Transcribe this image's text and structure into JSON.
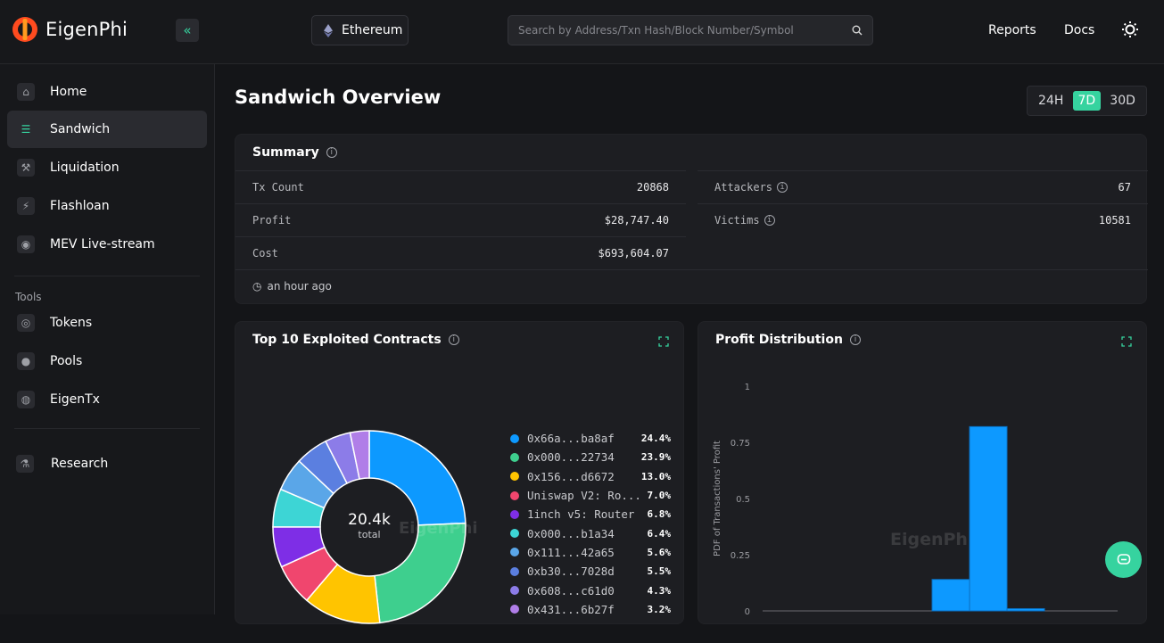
{
  "app": {
    "name": "EigenPhi",
    "brand_color": "#36d39f"
  },
  "header": {
    "collapse_icon": "double-chevron-left-icon",
    "chain_label": "Ethereum",
    "search_placeholder": "Search by Address/Txn Hash/Block Number/Symbol",
    "nav": [
      "Reports",
      "Docs"
    ],
    "theme_icon": "sun-icon"
  },
  "sidebar": {
    "items": [
      {
        "label": "Home",
        "icon": "home-icon"
      },
      {
        "label": "Sandwich",
        "icon": "sandwich-icon",
        "active": true
      },
      {
        "label": "Liquidation",
        "icon": "gavel-icon"
      },
      {
        "label": "Flashloan",
        "icon": "lightning-icon"
      },
      {
        "label": "MEV Live-stream",
        "icon": "stream-icon"
      }
    ],
    "tools_title": "Tools",
    "tools": [
      {
        "label": "Tokens",
        "icon": "coin-icon"
      },
      {
        "label": "Pools",
        "icon": "pool-icon"
      },
      {
        "label": "EigenTx",
        "icon": "eigentx-icon"
      }
    ],
    "research": {
      "label": "Research",
      "icon": "microscope-icon"
    }
  },
  "page": {
    "title": "Sandwich Overview",
    "ranges": [
      "24H",
      "7D",
      "30D"
    ],
    "active_range": "7D"
  },
  "summary": {
    "title": "Summary",
    "left": [
      {
        "label": "Tx Count",
        "value": "20868"
      },
      {
        "label": "Profit",
        "value": "$28,747.40"
      },
      {
        "label": "Cost",
        "value": "$693,604.07"
      }
    ],
    "right": [
      {
        "label": "Attackers",
        "value": "67"
      },
      {
        "label": "Victims",
        "value": "10581"
      }
    ],
    "updated": "an hour ago"
  },
  "contracts": {
    "title": "Top 10 Exploited Contracts",
    "center_value": "20.4k",
    "center_label": "total",
    "watermark": "EigenPhi",
    "items": [
      {
        "name": "0x66a...ba8af",
        "pct": "24.4%",
        "value": 24.4,
        "color": "#0d99ff"
      },
      {
        "name": "0x000...22734",
        "pct": "23.9%",
        "value": 23.9,
        "color": "#3ecf8e"
      },
      {
        "name": "0x156...d6672",
        "pct": "13.0%",
        "value": 13.0,
        "color": "#ffc400"
      },
      {
        "name": "Uniswap V2: Ro...",
        "pct": "7.0%",
        "value": 7.0,
        "color": "#f0466e"
      },
      {
        "name": "1inch v5: Router",
        "pct": "6.8%",
        "value": 6.8,
        "color": "#7e2ee6"
      },
      {
        "name": "0x000...b1a34",
        "pct": "6.4%",
        "value": 6.4,
        "color": "#3dd5d5"
      },
      {
        "name": "0x111...42a65",
        "pct": "5.6%",
        "value": 5.6,
        "color": "#5aa6e8"
      },
      {
        "name": "0xb30...7028d",
        "pct": "5.5%",
        "value": 5.5,
        "color": "#5b7fe0"
      },
      {
        "name": "0x608...c61d0",
        "pct": "4.3%",
        "value": 4.3,
        "color": "#8c7ce8"
      },
      {
        "name": "0x431...6b27f",
        "pct": "3.2%",
        "value": 3.2,
        "color": "#b07ee8"
      }
    ]
  },
  "profit_distribution": {
    "title": "Profit Distribution",
    "ylabel": "PDF of Transactions' Profit",
    "watermark": "EigenPhi",
    "chart_data": {
      "type": "bar",
      "ylabel": "PDF of Transactions' Profit",
      "yticks": [
        "0",
        "0.25",
        "0.5",
        "0.75",
        "1"
      ],
      "ylim": [
        0,
        1
      ],
      "bins": [
        {
          "index": 0,
          "value": 0.14
        },
        {
          "index": 1,
          "value": 0.82
        },
        {
          "index": 2,
          "value": 0.01
        }
      ],
      "color": "#0d99ff"
    }
  }
}
